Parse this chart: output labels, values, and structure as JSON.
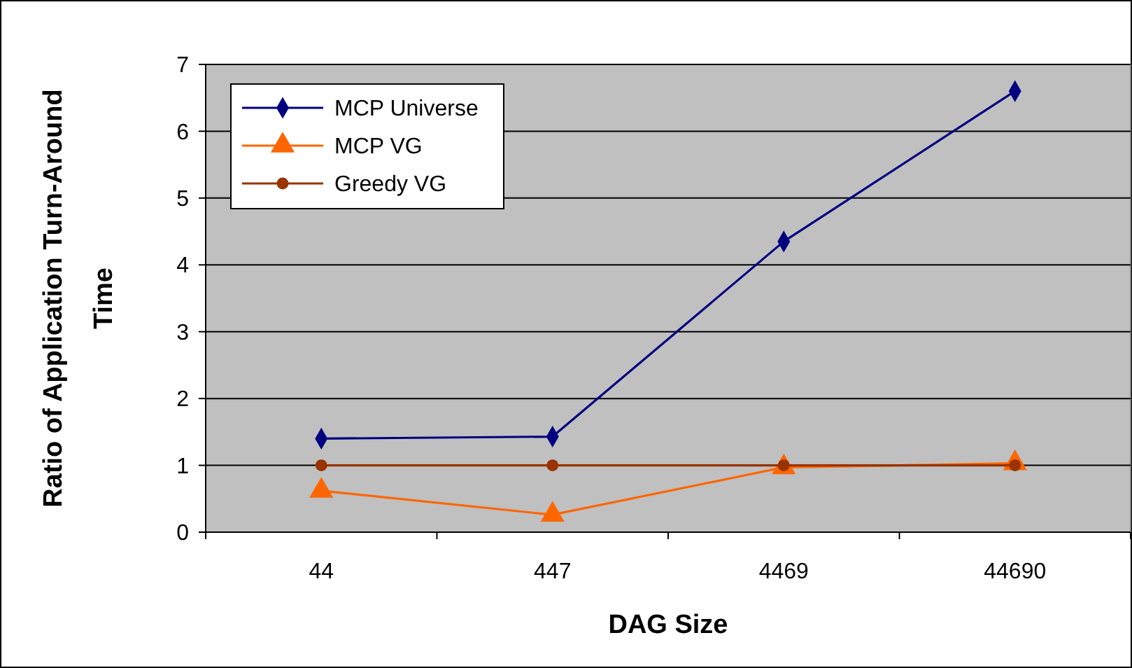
{
  "chart_data": {
    "type": "line",
    "xlabel": "DAG Size",
    "ylabel": "Ratio of Application Turn-Around Time",
    "categories": [
      "44",
      "447",
      "4469",
      "44690"
    ],
    "ylim": [
      0,
      7
    ],
    "yticks": [
      0,
      1,
      2,
      3,
      4,
      5,
      6,
      7
    ],
    "grid": "y",
    "legend": "top left",
    "series": [
      {
        "name": "MCP Universe",
        "color": "#000080",
        "marker": "diamond",
        "values": [
          1.4,
          1.43,
          4.35,
          6.6
        ]
      },
      {
        "name": "MCP VG",
        "color": "#ff6600",
        "marker": "triangle",
        "values": [
          0.62,
          0.26,
          0.97,
          1.03
        ]
      },
      {
        "name": "Greedy VG",
        "color": "#993300",
        "marker": "circle",
        "values": [
          1,
          1,
          1,
          1
        ]
      }
    ]
  }
}
